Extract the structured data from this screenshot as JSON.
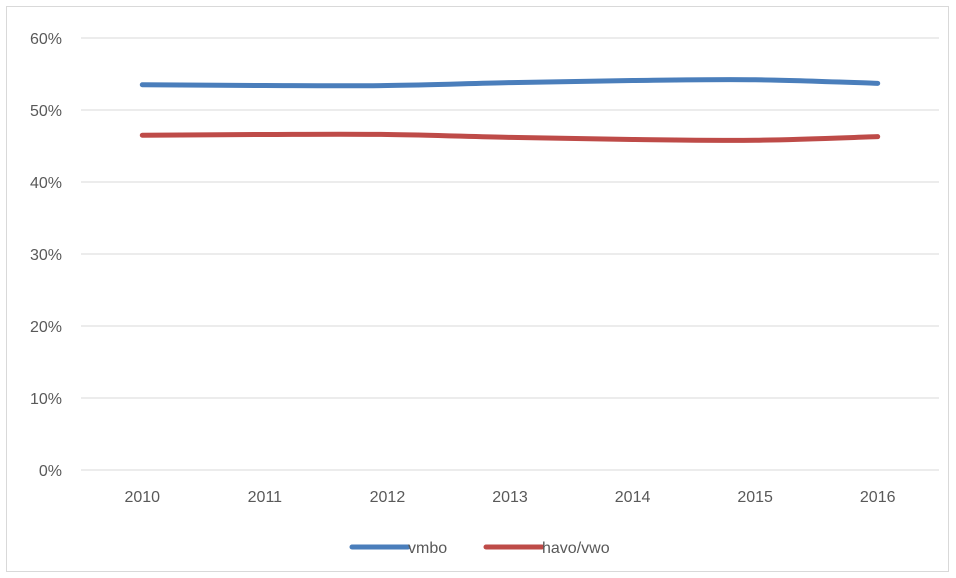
{
  "chart_data": {
    "type": "line",
    "title": "",
    "xlabel": "",
    "ylabel": "",
    "categories": [
      "2010",
      "2011",
      "2012",
      "2013",
      "2014",
      "2015",
      "2016"
    ],
    "ylim": [
      0,
      0.6
    ],
    "y_ticks": [
      "0%",
      "10%",
      "20%",
      "30%",
      "40%",
      "50%",
      "60%"
    ],
    "grid": true,
    "legend_position": "bottom",
    "series": [
      {
        "name": "vmbo",
        "color": "#4a7ebb",
        "values": [
          0.535,
          0.534,
          0.534,
          0.538,
          0.541,
          0.542,
          0.537
        ]
      },
      {
        "name": "havo/vwo",
        "color": "#be4b48",
        "values": [
          0.465,
          0.466,
          0.466,
          0.462,
          0.459,
          0.458,
          0.463
        ]
      }
    ]
  }
}
